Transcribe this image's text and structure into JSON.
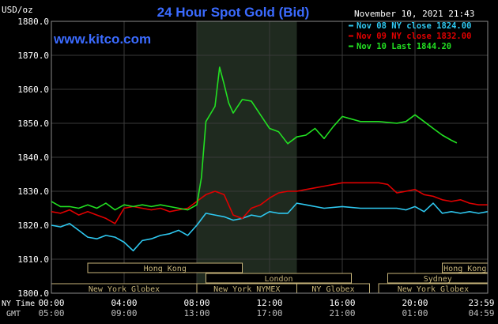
{
  "header": {
    "title": "24 Hour Spot Gold (Bid)",
    "unit": "USD/oz",
    "timestamp": "November 10, 2021 21:43",
    "website": "www.kitco.com"
  },
  "colors": {
    "title": "#3b6bff",
    "website": "#3b6bff",
    "nov08": "#2ec8f0",
    "nov09": "#e00000",
    "nov10": "#22e022",
    "grid": "#3a3a3a",
    "axis_text": "#ffffff",
    "session_fill": "#1f2a1f",
    "market_box_fill": "#000000",
    "market_box_stroke": "#c7b57a",
    "market_text": "#c7b57a"
  },
  "legend": {
    "position": "top-right",
    "items": [
      {
        "label": "Nov 08 NY close 1824.00",
        "color_key": "nov08"
      },
      {
        "label": "Nov 09 NY close 1832.00",
        "color_key": "nov09"
      },
      {
        "label": "Nov 10 Last 1844.20",
        "color_key": "nov10"
      }
    ]
  },
  "axes": {
    "row1_label": "NY Time",
    "row2_label": "GMT",
    "ny_ticks": [
      "00:00",
      "04:00",
      "08:00",
      "12:00",
      "16:00",
      "20:00",
      "23:59"
    ],
    "gmt_ticks": [
      "05:00",
      "09:00",
      "13:00",
      "17:00",
      "21:00",
      "01:00",
      "04:59"
    ],
    "y_ticks": [
      "1800.0",
      "1810.0",
      "1820.0",
      "1830.0",
      "1840.0",
      "1850.0",
      "1860.0",
      "1870.0",
      "1880.0"
    ]
  },
  "markets": {
    "row1": [
      {
        "label": "Hong Kong",
        "start": 2.0,
        "end": 10.5
      },
      {
        "label": "Hong Kong",
        "start": 21.5,
        "end": 24.0
      }
    ],
    "row2": [
      {
        "label": "London",
        "start": 8.5,
        "end": 16.5
      },
      {
        "label": "Sydney",
        "start": 18.5,
        "end": 24.0
      }
    ],
    "row3": [
      {
        "label": "New York Globex",
        "start": 0.0,
        "end": 8.0
      },
      {
        "label": "New York NYMEX",
        "start": 8.0,
        "end": 13.5
      },
      {
        "label": "NY Globex",
        "start": 13.5,
        "end": 17.5
      },
      {
        "label": "New York Globex",
        "start": 18.0,
        "end": 24.0
      }
    ]
  },
  "chart_data": {
    "type": "line",
    "title": "24 Hour Spot Gold (Bid)",
    "ylabel": "USD/oz",
    "xlabel": "NY Time",
    "xlim": [
      0,
      24
    ],
    "ylim": [
      1800,
      1880
    ],
    "grid": true,
    "nymex_session": [
      8.0,
      13.5
    ],
    "series": [
      {
        "name": "Nov 08 NY close 1824.00",
        "color_key": "nov08",
        "x": [
          0.0,
          0.5,
          1.0,
          1.5,
          2.0,
          2.5,
          3.0,
          3.5,
          4.0,
          4.5,
          5.0,
          5.5,
          6.0,
          6.5,
          7.0,
          7.5,
          8.0,
          8.5,
          9.0,
          9.5,
          10.0,
          10.5,
          11.0,
          11.5,
          12.0,
          12.5,
          13.0,
          13.5,
          14.0,
          15.0,
          16.0,
          17.0,
          18.0,
          19.0,
          19.5,
          20.0,
          20.5,
          21.0,
          21.5,
          22.0,
          22.5,
          23.0,
          23.5,
          23.99
        ],
        "values": [
          1820.0,
          1819.5,
          1820.5,
          1818.5,
          1816.5,
          1816.0,
          1817.0,
          1816.5,
          1815.0,
          1812.5,
          1815.5,
          1816.0,
          1817.0,
          1817.5,
          1818.5,
          1817.0,
          1820.0,
          1823.5,
          1823.0,
          1822.5,
          1821.5,
          1822.0,
          1823.0,
          1822.5,
          1824.0,
          1823.5,
          1823.5,
          1826.5,
          1826.0,
          1825.0,
          1825.5,
          1825.0,
          1825.0,
          1825.0,
          1824.5,
          1825.5,
          1824.0,
          1826.5,
          1823.5,
          1824.0,
          1823.5,
          1824.0,
          1823.5,
          1824.0
        ]
      },
      {
        "name": "Nov 09 NY close 1832.00",
        "color_key": "nov09",
        "x": [
          0.0,
          0.5,
          1.0,
          1.5,
          2.0,
          2.5,
          3.0,
          3.5,
          4.0,
          4.5,
          5.0,
          5.5,
          6.0,
          6.5,
          7.0,
          7.5,
          8.0,
          8.5,
          9.0,
          9.5,
          10.0,
          10.5,
          11.0,
          11.5,
          12.0,
          12.5,
          13.0,
          13.5,
          14.0,
          15.0,
          16.0,
          17.0,
          18.0,
          18.5,
          19.0,
          19.5,
          20.0,
          20.5,
          21.0,
          21.5,
          22.0,
          22.5,
          23.0,
          23.5,
          23.99
        ],
        "values": [
          1824.0,
          1823.5,
          1824.5,
          1823.0,
          1824.0,
          1823.0,
          1822.0,
          1820.5,
          1825.0,
          1825.5,
          1825.0,
          1824.5,
          1825.0,
          1824.0,
          1824.5,
          1825.0,
          1827.0,
          1829.0,
          1830.0,
          1829.0,
          1823.0,
          1822.0,
          1825.0,
          1826.0,
          1828.0,
          1829.5,
          1830.0,
          1830.0,
          1830.5,
          1831.5,
          1832.5,
          1832.5,
          1832.5,
          1832.0,
          1829.5,
          1830.0,
          1830.5,
          1829.0,
          1828.5,
          1827.5,
          1827.0,
          1827.5,
          1826.5,
          1826.0,
          1826.0
        ]
      },
      {
        "name": "Nov 10 Last 1844.20",
        "color_key": "nov10",
        "x": [
          0.0,
          0.5,
          1.0,
          1.5,
          2.0,
          2.5,
          3.0,
          3.5,
          4.0,
          4.5,
          5.0,
          5.5,
          6.0,
          6.5,
          7.0,
          7.5,
          8.0,
          8.25,
          8.5,
          9.0,
          9.25,
          9.5,
          9.75,
          10.0,
          10.5,
          11.0,
          11.5,
          12.0,
          12.5,
          13.0,
          13.5,
          14.0,
          14.5,
          15.0,
          15.5,
          16.0,
          17.0,
          18.0,
          19.0,
          19.5,
          20.0,
          20.5,
          21.0,
          21.5,
          22.0,
          22.3
        ],
        "values": [
          1827.0,
          1825.5,
          1825.5,
          1825.0,
          1826.0,
          1825.0,
          1826.5,
          1824.5,
          1826.0,
          1825.5,
          1826.0,
          1825.5,
          1826.0,
          1825.5,
          1825.0,
          1824.5,
          1826.0,
          1834.0,
          1850.5,
          1855.0,
          1866.5,
          1861.5,
          1856.0,
          1853.0,
          1857.0,
          1856.5,
          1852.5,
          1848.5,
          1847.5,
          1844.0,
          1846.0,
          1846.5,
          1848.5,
          1845.5,
          1849.0,
          1852.0,
          1850.5,
          1850.5,
          1850.0,
          1850.5,
          1852.5,
          1850.5,
          1848.5,
          1846.5,
          1845.0,
          1844.2
        ]
      }
    ]
  }
}
